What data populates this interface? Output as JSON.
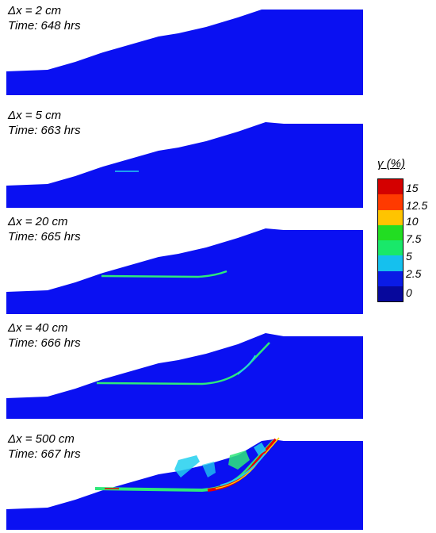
{
  "panels": [
    {
      "dx": "Δx = 2 cm",
      "time": "Time: 648 hrs"
    },
    {
      "dx": "Δx = 5 cm",
      "time": "Time: 663 hrs"
    },
    {
      "dx": "Δx = 20 cm",
      "time": "Time: 665 hrs"
    },
    {
      "dx": "Δx = 40 cm",
      "time": "Time: 666 hrs"
    },
    {
      "dx": "Δx = 500 cm",
      "time": "Time: 667 hrs"
    }
  ],
  "legend": {
    "title": "γ (%)",
    "ticks": [
      "15",
      "12.5",
      "10",
      "7.5",
      "5",
      "2.5",
      "0"
    ],
    "colors": [
      "#d40000",
      "#ff3a00",
      "#ffc400",
      "#22dd22",
      "#19e86a",
      "#15c0ee",
      "#0a1be6",
      "#07089c"
    ]
  },
  "colors": {
    "slope": "#0a10f2",
    "band_green": "#2ee87a",
    "band_cyan": "#22d0ee",
    "band_red": "#e80000",
    "band_yellow": "#ffd000"
  }
}
